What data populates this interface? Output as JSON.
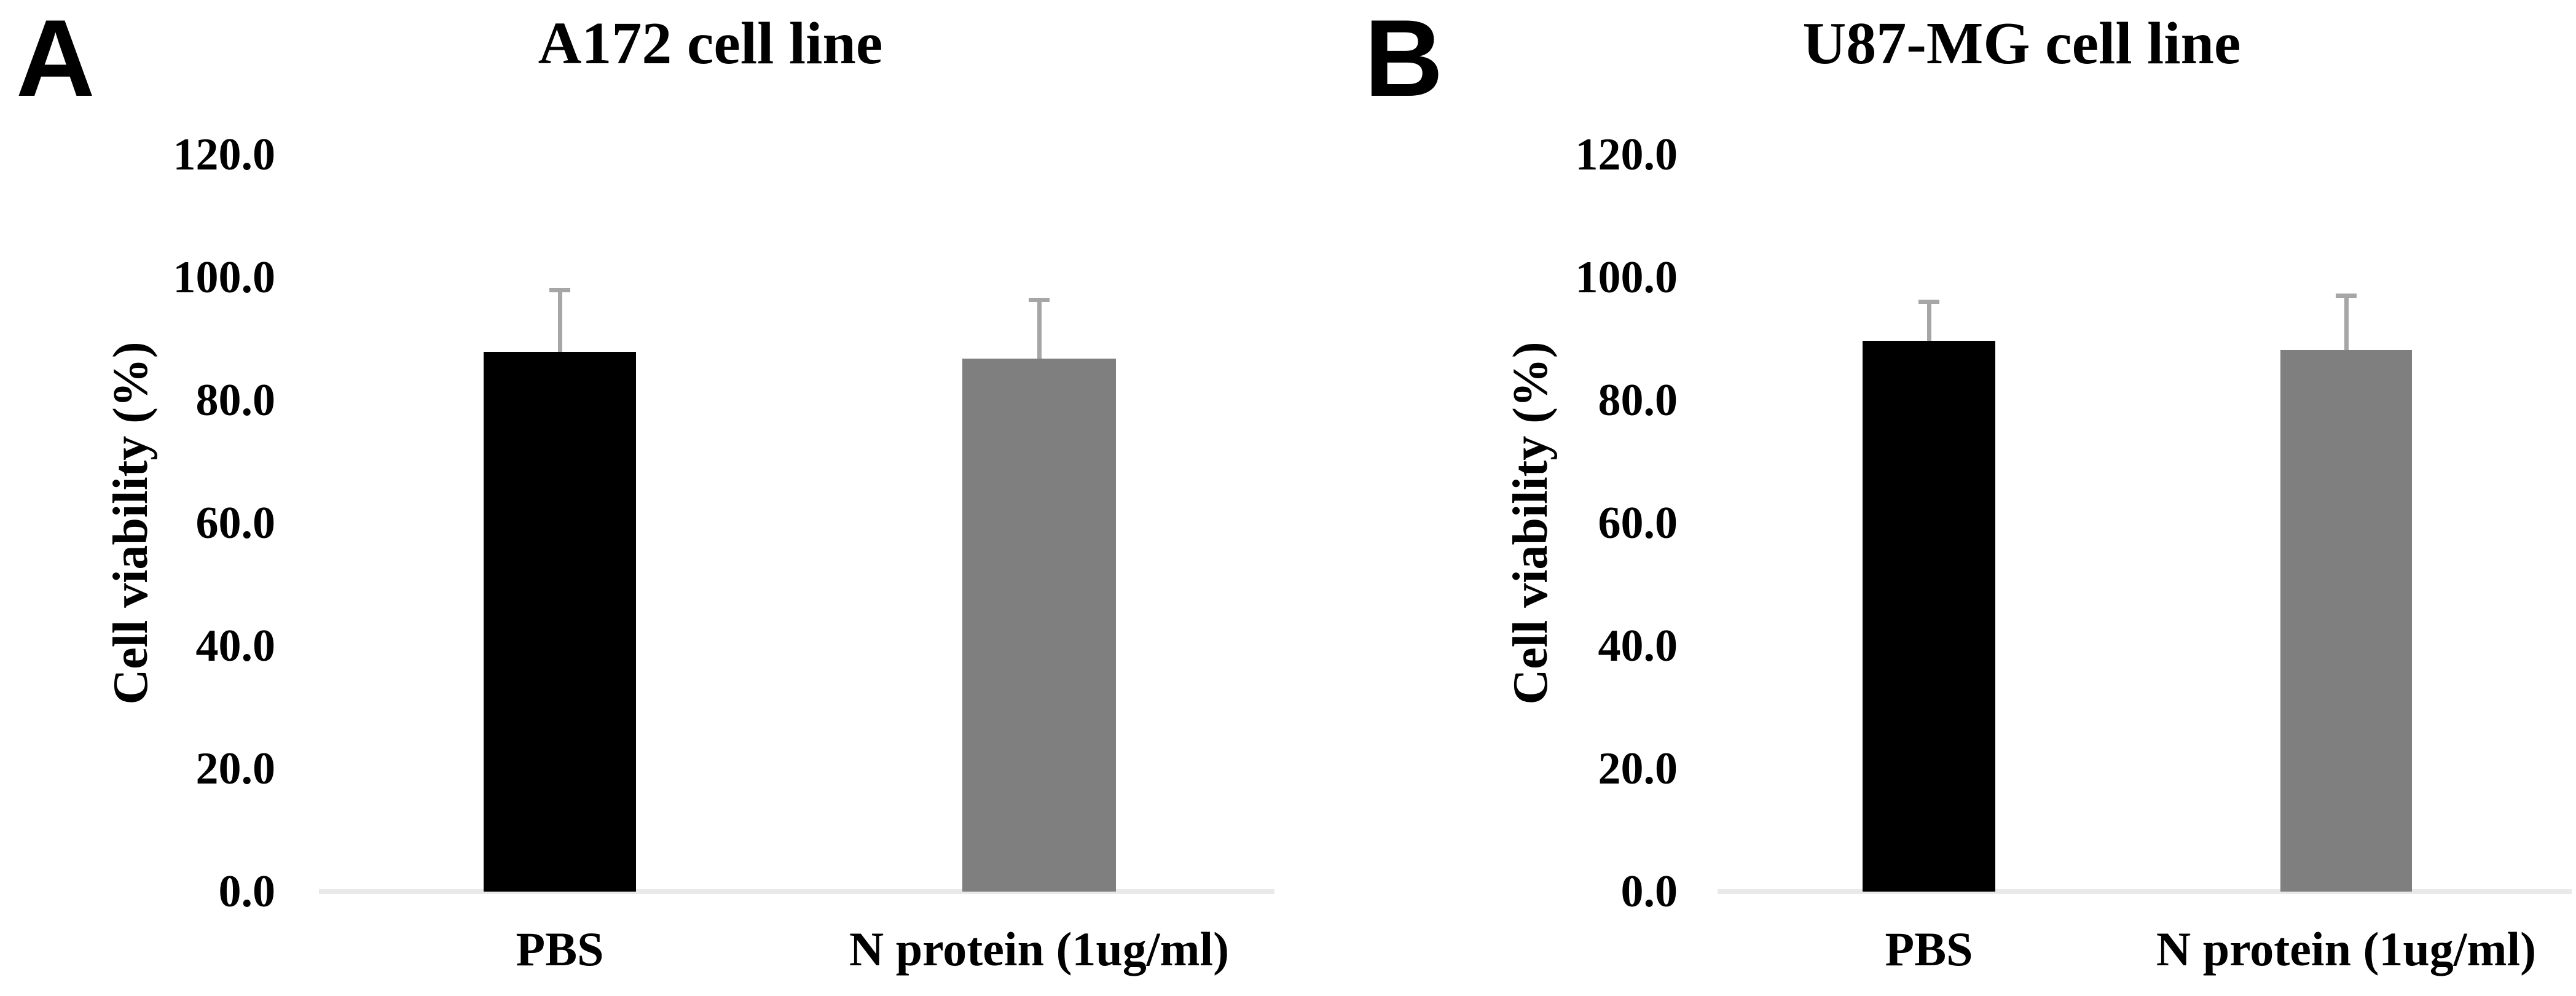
{
  "figure": {
    "background_color": "#ffffff",
    "panels_count": 2
  },
  "chart_data": [
    {
      "type": "bar",
      "panel_label": "A",
      "title": "A172 cell line",
      "ylabel": "Cell viability (%)",
      "xlabel": "",
      "categories": [
        "PBS",
        "N protein (1ug/ml)"
      ],
      "values": [
        87.9,
        86.8
      ],
      "errors_plus": [
        10.1,
        9.6
      ],
      "ylim": [
        0,
        120
      ],
      "yticks": {
        "values": [
          120,
          100,
          80,
          60,
          40,
          20,
          0
        ],
        "labels": [
          "120.0",
          "100.0",
          "80.0",
          "60.0",
          "40.0",
          "20.0",
          "0.0"
        ]
      },
      "bar_colors": [
        "#000000",
        "#7f7f7f"
      ],
      "error_bar_color": "#a6a6a6",
      "axis_line_color": "#e9e9e9",
      "grid": false,
      "legend": null
    },
    {
      "type": "bar",
      "panel_label": "B",
      "title": "U87-MG cell line",
      "ylabel": "Cell viability (%)",
      "xlabel": "",
      "categories": [
        "PBS",
        "N protein (1ug/ml)"
      ],
      "values": [
        89.7,
        88.2
      ],
      "errors_plus": [
        6.4,
        8.9
      ],
      "ylim": [
        0,
        120
      ],
      "yticks": {
        "values": [
          120,
          100,
          80,
          60,
          40,
          20,
          0
        ],
        "labels": [
          "120.0",
          "100.0",
          "80.0",
          "60.0",
          "40.0",
          "20.0",
          "0.0"
        ]
      },
      "bar_colors": [
        "#000000",
        "#7f7f7f"
      ],
      "error_bar_color": "#a6a6a6",
      "axis_line_color": "#e9e9e9",
      "grid": false,
      "legend": null
    }
  ]
}
